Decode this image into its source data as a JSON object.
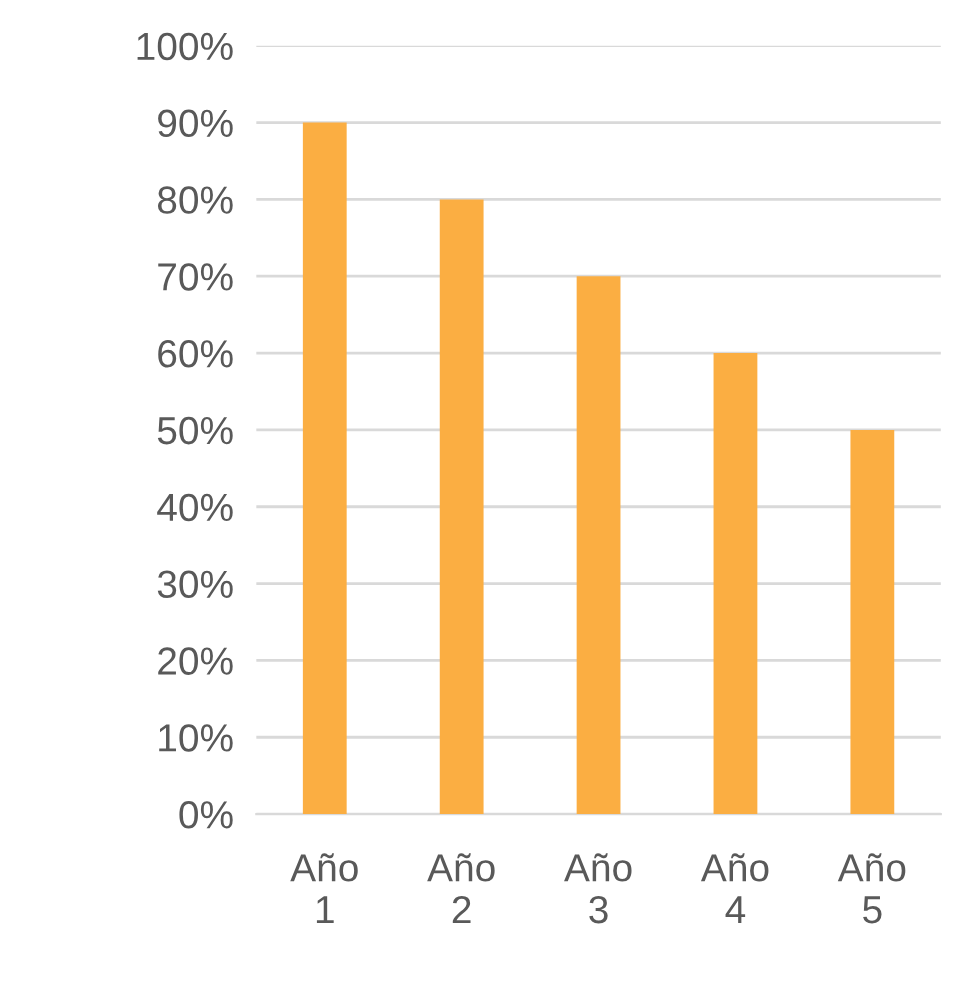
{
  "chart_data": {
    "type": "bar",
    "categories": [
      "Año 1",
      "Año 2",
      "Año 3",
      "Año 4",
      "Año 5"
    ],
    "values": [
      90,
      80,
      70,
      60,
      50
    ],
    "color": "#fbae42",
    "ylim": [
      0,
      100
    ],
    "yticks": [
      {
        "value": 0,
        "label": "0%"
      },
      {
        "value": 10,
        "label": "10%"
      },
      {
        "value": 20,
        "label": "20%"
      },
      {
        "value": 30,
        "label": "30%"
      },
      {
        "value": 40,
        "label": "40%"
      },
      {
        "value": 50,
        "label": "50%"
      },
      {
        "value": 60,
        "label": "60%"
      },
      {
        "value": 70,
        "label": "70%"
      },
      {
        "value": 80,
        "label": "80%"
      },
      {
        "value": 90,
        "label": "90%"
      },
      {
        "value": 100,
        "label": "100%"
      }
    ],
    "grid": "y"
  }
}
